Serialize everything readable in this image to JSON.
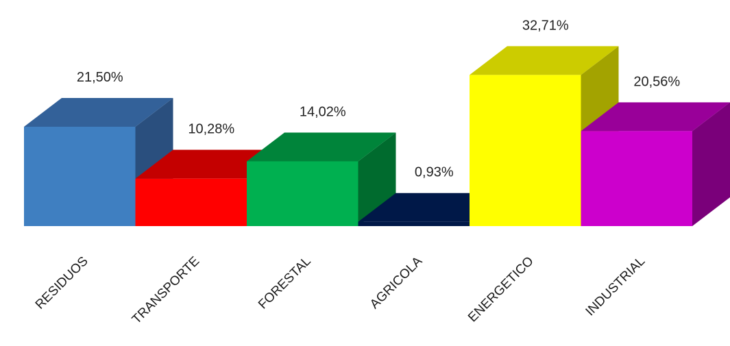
{
  "chart_data": {
    "type": "bar",
    "style": "3d",
    "title": "",
    "xlabel": "",
    "ylabel": "",
    "categories": [
      "RESIDUOS",
      "TRANSPORTE",
      "FORESTAL",
      "AGRICOLA",
      "ENERGETICO",
      "INDUSTRIAL"
    ],
    "values": [
      21.5,
      10.28,
      14.02,
      0.93,
      32.71,
      20.56
    ],
    "value_labels": [
      "21,50%",
      "10,28%",
      "14,02%",
      "0,93%",
      "32,71%",
      "20,56%"
    ],
    "ylim": [
      0,
      35
    ],
    "grid": false,
    "legend": "none",
    "colors": {
      "front": [
        "#3f7fc1",
        "#ff0000",
        "#00b050",
        "#001848",
        "#ffff00",
        "#cc00cc"
      ],
      "top": [
        "#336199",
        "#c40000",
        "#00843a",
        "#001848",
        "#cccc00",
        "#990099"
      ],
      "side": [
        "#2a4f7e",
        "#a00000",
        "#006b2e",
        "#000f30",
        "#a3a300",
        "#7a007a"
      ]
    }
  }
}
